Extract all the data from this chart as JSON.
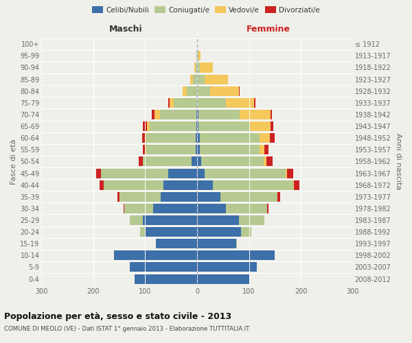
{
  "age_groups": [
    "0-4",
    "5-9",
    "10-14",
    "15-19",
    "20-24",
    "25-29",
    "30-34",
    "35-39",
    "40-44",
    "45-49",
    "50-54",
    "55-59",
    "60-64",
    "65-69",
    "70-74",
    "75-79",
    "80-84",
    "85-89",
    "90-94",
    "95-99",
    "100+"
  ],
  "birth_years": [
    "2008-2012",
    "2003-2007",
    "1998-2002",
    "1993-1997",
    "1988-1992",
    "1983-1987",
    "1978-1982",
    "1973-1977",
    "1968-1972",
    "1963-1967",
    "1958-1962",
    "1953-1957",
    "1948-1952",
    "1943-1947",
    "1938-1942",
    "1933-1937",
    "1928-1932",
    "1923-1927",
    "1918-1922",
    "1913-1917",
    "≤ 1912"
  ],
  "males": {
    "celibi": [
      120,
      130,
      160,
      80,
      100,
      105,
      85,
      70,
      65,
      55,
      10,
      3,
      3,
      2,
      2,
      0,
      0,
      0,
      0,
      0,
      0
    ],
    "coniugati": [
      0,
      0,
      0,
      0,
      10,
      25,
      55,
      80,
      115,
      130,
      95,
      95,
      95,
      90,
      70,
      45,
      20,
      8,
      3,
      1,
      0
    ],
    "vedovi": [
      0,
      0,
      0,
      0,
      0,
      0,
      0,
      0,
      0,
      0,
      0,
      2,
      3,
      5,
      10,
      8,
      8,
      5,
      2,
      0,
      0
    ],
    "divorziati": [
      0,
      0,
      0,
      0,
      0,
      0,
      2,
      3,
      8,
      10,
      8,
      5,
      5,
      8,
      5,
      2,
      0,
      0,
      0,
      0,
      0
    ]
  },
  "females": {
    "nubili": [
      100,
      115,
      150,
      75,
      85,
      80,
      55,
      45,
      30,
      15,
      8,
      5,
      5,
      2,
      2,
      0,
      0,
      0,
      0,
      0,
      0
    ],
    "coniugate": [
      0,
      0,
      0,
      2,
      20,
      50,
      80,
      110,
      155,
      155,
      120,
      115,
      115,
      100,
      80,
      55,
      25,
      15,
      5,
      2,
      0
    ],
    "vedove": [
      0,
      0,
      0,
      0,
      0,
      0,
      0,
      0,
      2,
      3,
      5,
      10,
      20,
      40,
      60,
      55,
      55,
      45,
      25,
      5,
      0
    ],
    "divorziate": [
      0,
      0,
      0,
      0,
      0,
      0,
      3,
      5,
      10,
      12,
      12,
      8,
      10,
      5,
      2,
      2,
      2,
      0,
      0,
      0,
      0
    ]
  },
  "colors": {
    "celibi": "#3d6fa8",
    "coniugati": "#b5c990",
    "vedovi": "#f5c85c",
    "divorziati": "#cc2222"
  },
  "title": "Popolazione per età, sesso e stato civile - 2013",
  "subtitle": "COMUNE DI MEOLO (VE) - Dati ISTAT 1° gennaio 2013 - Elaborazione TUTTITALIA.IT",
  "xlabel_left": "Maschi",
  "xlabel_right": "Femmine",
  "ylabel_left": "Fasce di età",
  "ylabel_right": "Anni di nascita",
  "xlim": 300,
  "bg_color": "#f0f0eb",
  "legend_labels": [
    "Celibi/Nubili",
    "Coniugati/e",
    "Vedovi/e",
    "Divorziati/e"
  ]
}
